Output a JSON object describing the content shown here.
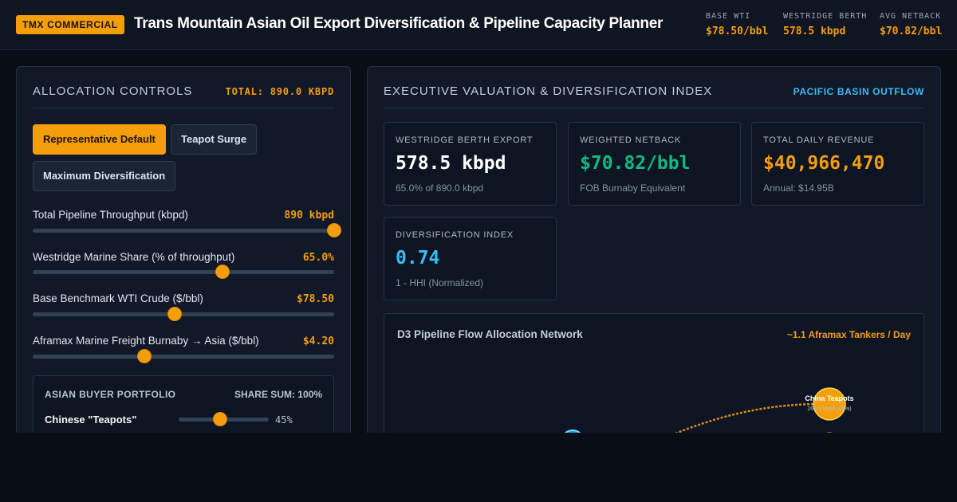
{
  "header": {
    "badge": "TMX COMMERCIAL",
    "title": "Trans Mountain Asian Oil Export Diversification & Pipeline Capacity Planner",
    "stats": [
      {
        "label": "BASE WTI",
        "value": "$78.50/bbl"
      },
      {
        "label": "WESTRIDGE BERTH",
        "value": "578.5 kbpd"
      },
      {
        "label": "AVG NETBACK",
        "value": "$70.82/bbl"
      }
    ]
  },
  "controls": {
    "title": "ALLOCATION CONTROLS",
    "total": "TOTAL: 890.0 KBPD",
    "presets": [
      {
        "label": "Representative Default",
        "active": true
      },
      {
        "label": "Teapot Surge",
        "active": false
      },
      {
        "label": "Maximum Diversification",
        "active": false
      }
    ],
    "sliders": [
      {
        "label": "Total Pipeline Throughput (kbpd)",
        "value": "890 kbpd",
        "level": 1.0
      },
      {
        "label": "Westridge Marine Share (% of throughput)",
        "value": "65.0%",
        "level": 0.63
      },
      {
        "label": "Base Benchmark WTI Crude ($/bbl)",
        "value": "$78.50",
        "level": 0.47
      },
      {
        "label": "Aframax Marine Freight Burnaby → Asia ($/bbl)",
        "value": "$4.20",
        "level": 0.37
      }
    ],
    "portfolio": {
      "title": "ASIAN BUYER PORTFOLIO",
      "sum": "SHARE SUM: 100%",
      "buyers": [
        {
          "name": "Chinese \"Teapots\"",
          "share": "45%",
          "level": 0.46
        }
      ]
    }
  },
  "valuation": {
    "title": "EXECUTIVE VALUATION & DIVERSIFICATION INDEX",
    "tag": "PACIFIC BASIN OUTFLOW",
    "kpis": [
      {
        "label": "WESTRIDGE BERTH EXPORT",
        "value": "578.5 kbpd",
        "sub": "65.0% of 890.0 kbpd",
        "color": "#ffffff"
      },
      {
        "label": "WEIGHTED NETBACK",
        "value": "$70.82/bbl",
        "sub": "FOB Burnaby Equivalent",
        "color": "#10b981"
      },
      {
        "label": "TOTAL DAILY REVENUE",
        "value": "$40,966,470",
        "sub": "Annual: $14.95B",
        "color": "#f59e0b"
      },
      {
        "label": "DIVERSIFICATION INDEX",
        "value": "0.74",
        "sub": "1 - HHI (Normalized)",
        "color": "#38bdf8"
      }
    ],
    "network": {
      "title": "D3 Pipeline Flow Allocation Network",
      "rate": "~1.1 Aframax Tankers / Day",
      "node_label": "China Teapots",
      "node_sub": "260.3 kbpd (45%)"
    }
  },
  "colors": {
    "accent": "#f59e0b",
    "positive": "#10b981",
    "info": "#38bdf8"
  }
}
